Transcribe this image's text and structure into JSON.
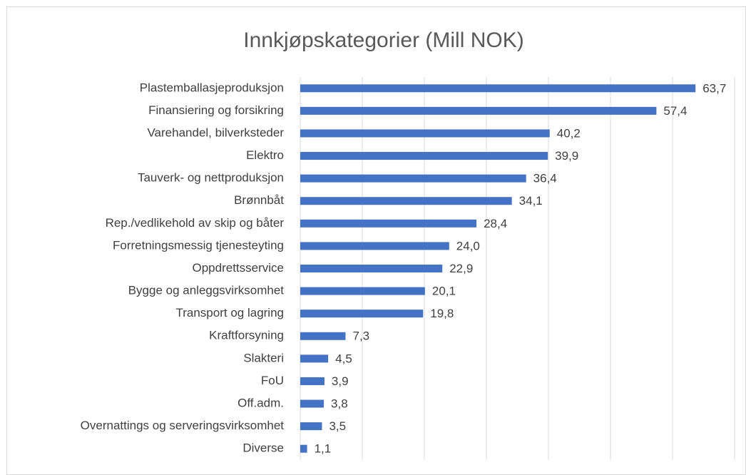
{
  "chart_data": {
    "type": "barh",
    "title": "Innkjøpskategorier (Mill NOK)",
    "categories": [
      "Plastemballasjeproduksjon",
      "Finansiering og forsikring",
      "Varehandel, bilverksteder",
      "Elektro",
      "Tauverk- og nettproduksjon",
      "Brønnbåt",
      "Rep./vedlikehold av skip og båter",
      "Forretningsmessig tjenesteyting",
      "Oppdrettsservice",
      "Bygge og anleggsvirksomhet",
      "Transport og lagring",
      "Kraftforsyning",
      "Slakteri",
      "FoU",
      "Off.adm.",
      "Overnattings og serveringsvirksomhet",
      "Diverse"
    ],
    "values": [
      63.7,
      57.4,
      40.2,
      39.9,
      36.4,
      34.1,
      28.4,
      24.0,
      22.9,
      20.1,
      19.8,
      7.3,
      4.5,
      3.9,
      3.8,
      3.5,
      1.1
    ],
    "value_labels": [
      "63,7",
      "57,4",
      "40,2",
      "39,9",
      "36,4",
      "34,1",
      "28,4",
      "24,0",
      "22,9",
      "20,1",
      "19,8",
      "7,3",
      "4,5",
      "3,9",
      "3,8",
      "3,5",
      "1,1"
    ],
    "color": "#4472c4",
    "xlim": [
      0,
      70
    ],
    "xticks": [
      0,
      10,
      20,
      30,
      40,
      50,
      60,
      70
    ],
    "grid": true
  }
}
